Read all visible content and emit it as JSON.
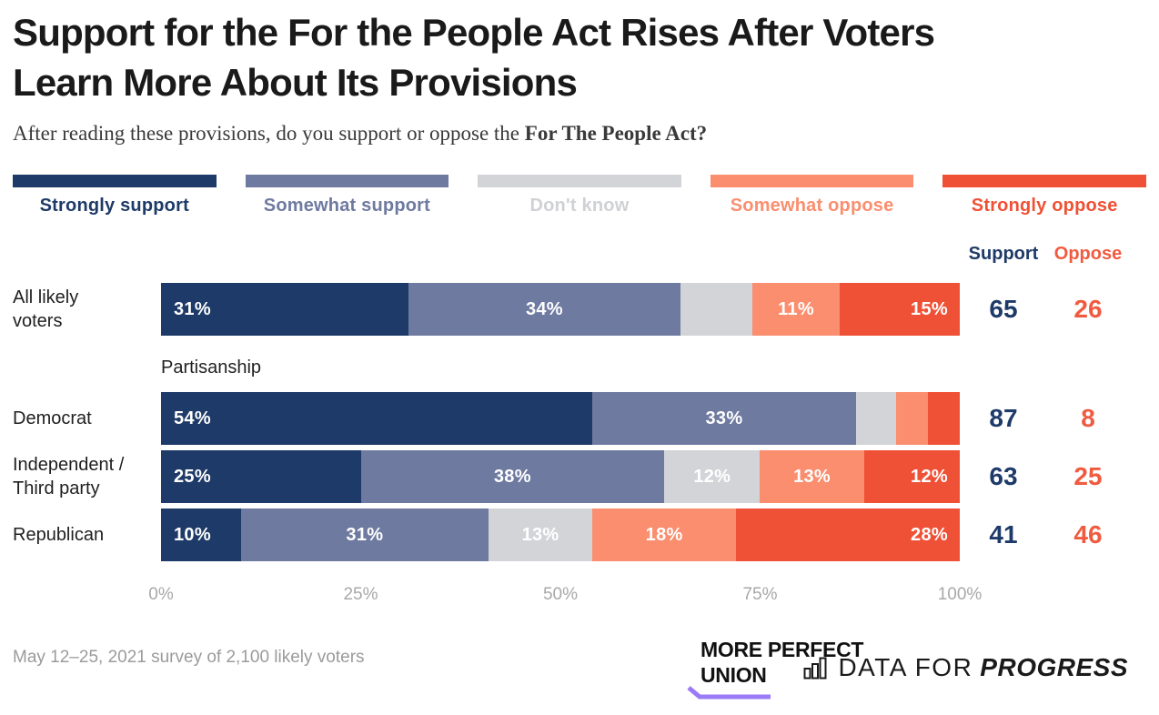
{
  "title": {
    "line1": "Support for the For the People Act Rises After Voters",
    "line2": "Learn More About Its Provisions"
  },
  "subtitle": {
    "regular": "After reading these provisions, do you support or oppose the ",
    "bold": "For The People Act?"
  },
  "colors": {
    "support_accent": "#1e3a68",
    "oppose_accent": "#f05b40",
    "purple_accent": "#9b7af7",
    "title_text": "#1a1a1a",
    "axis_text": "#a8a8aa",
    "footnote_text": "#9b9b9d"
  },
  "chart_data": {
    "type": "bar",
    "stacked": true,
    "orientation": "horizontal",
    "title": "Support for the For the People Act Rises After Voters Learn More About Its Provisions",
    "subtitle": "After reading these provisions, do you support or oppose the For The People Act?",
    "legend_position": "top",
    "grid": false,
    "categories": [
      "Strongly support",
      "Somewhat support",
      "Don't know",
      "Somewhat oppose",
      "Strongly oppose"
    ],
    "legend": [
      {
        "label": "Strongly support",
        "color": "#1e3a68"
      },
      {
        "label": "Somewhat support",
        "color": "#6e7aa0"
      },
      {
        "label": "Don't know",
        "color": "#d2d4d8",
        "label_color": "#cfd1d5"
      },
      {
        "label": "Somewhat oppose",
        "color": "#fa8e6e"
      },
      {
        "label": "Strongly oppose",
        "color": "#ef5136"
      }
    ],
    "columns": {
      "support": "Support",
      "oppose": "Oppose"
    },
    "group_label": "Partisanship",
    "rows": [
      {
        "label": "All likely voters",
        "label_lines": [
          "All likely",
          "voters"
        ],
        "values": [
          31,
          34,
          9,
          11,
          15
        ],
        "segment_labels": [
          "31%",
          "34%",
          "",
          "11%",
          "15%"
        ],
        "support": 65,
        "oppose": 26
      },
      {
        "label": "Democrat",
        "label_lines": [
          "Democrat"
        ],
        "values": [
          54,
          33,
          5,
          4,
          4
        ],
        "segment_labels": [
          "54%",
          "33%",
          "",
          "",
          ""
        ],
        "support": 87,
        "oppose": 8
      },
      {
        "label": "Independent / Third party",
        "label_lines": [
          "Independent /",
          "Third party"
        ],
        "values": [
          25,
          38,
          12,
          13,
          12
        ],
        "segment_labels": [
          "25%",
          "38%",
          "12%",
          "13%",
          "12%"
        ],
        "support": 63,
        "oppose": 25
      },
      {
        "label": "Republican",
        "label_lines": [
          "Republican"
        ],
        "values": [
          10,
          31,
          13,
          18,
          28
        ],
        "segment_labels": [
          "10%",
          "31%",
          "13%",
          "18%",
          "28%"
        ],
        "support": 41,
        "oppose": 46
      }
    ],
    "x_ticks": [
      "0%",
      "25%",
      "50%",
      "75%",
      "100%"
    ],
    "xlim": [
      0,
      100
    ]
  },
  "footer": {
    "note": "May 12–25, 2021 survey of 2,100 likely voters",
    "mpu_logo": {
      "line1": "MORE PERFECT",
      "line2": "UNION"
    },
    "dfp_logo": {
      "prefix": "DATA FOR",
      "bold": "PROGRESS"
    }
  }
}
